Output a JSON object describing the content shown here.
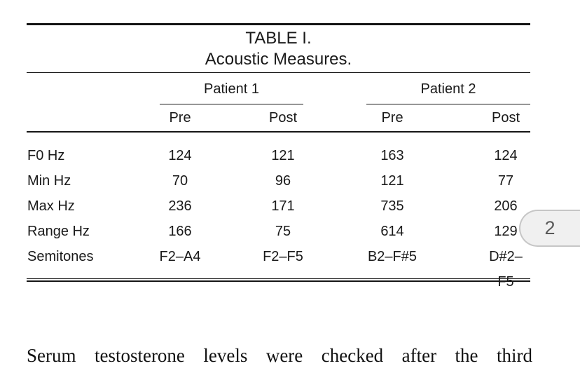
{
  "table": {
    "caption_line1": "TABLE I.",
    "caption_line2": "Acoustic Measures.",
    "column_groups": [
      {
        "label": "Patient 1"
      },
      {
        "label": "Patient 2"
      }
    ],
    "subheaders": [
      "Pre",
      "Post",
      "Pre",
      "Post"
    ],
    "rows": [
      {
        "label": "F0 Hz",
        "values": [
          "124",
          "121",
          "163",
          "124"
        ]
      },
      {
        "label": "Min Hz",
        "values": [
          "70",
          "96",
          "121",
          "77"
        ]
      },
      {
        "label": "Max Hz",
        "values": [
          "236",
          "171",
          "735",
          "206"
        ]
      },
      {
        "label": "Range Hz",
        "values": [
          "166",
          "75",
          "614",
          "129"
        ]
      },
      {
        "label": "Semitones",
        "values": [
          "F2–A4",
          "F2–F5",
          "B2–F#5",
          "D#2–F5"
        ]
      }
    ]
  },
  "page_badge": {
    "number": "2"
  },
  "body_text": "Serum testosterone levels were checked after the third",
  "colors": {
    "rule": "#1a1a1a",
    "badge_background": "#f0f0f0",
    "badge_border": "#c6c6c6",
    "badge_text": "#595959",
    "text": "#111111"
  }
}
